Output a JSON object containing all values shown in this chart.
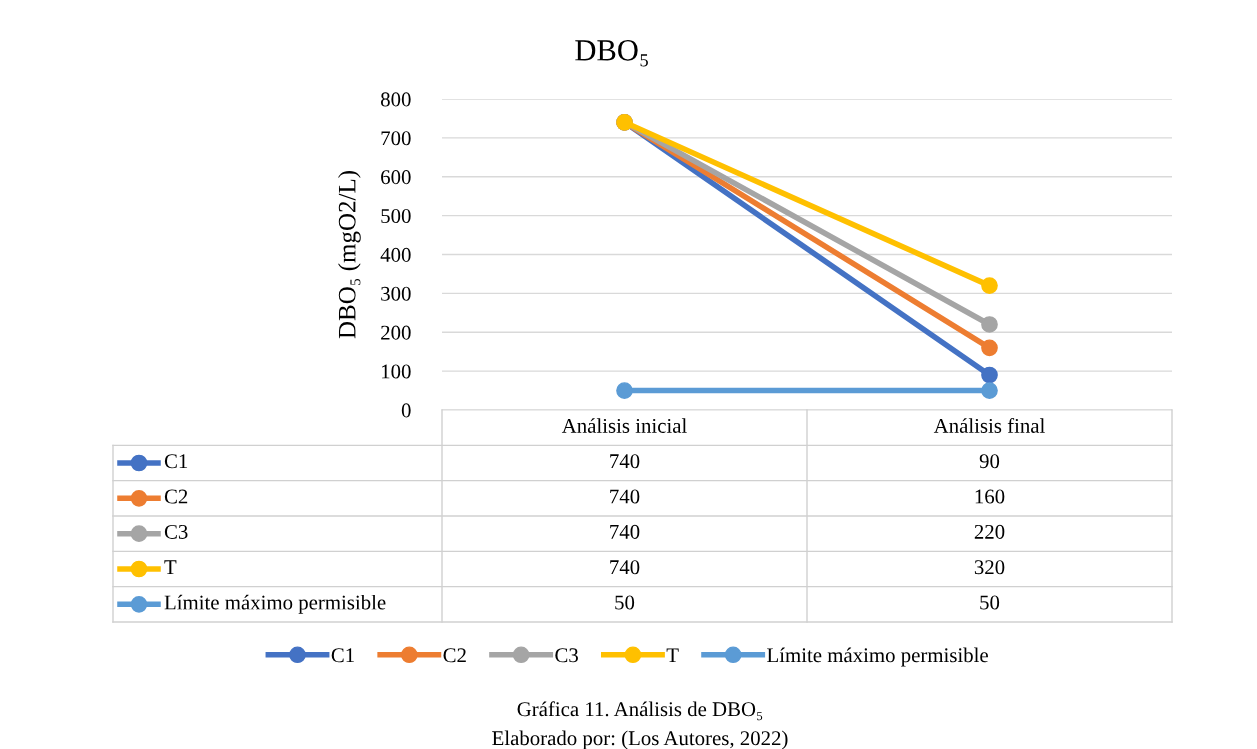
{
  "chart_data": {
    "type": "line",
    "title": "DBO₅",
    "ylabel": "DBO₅ (mgO2/L)",
    "categories": [
      "Análisis inicial",
      "Análisis final"
    ],
    "series": [
      {
        "name": "C1",
        "color": "#4472c4",
        "values": [
          740,
          90
        ]
      },
      {
        "name": "C2",
        "color": "#ed7d31",
        "values": [
          740,
          160
        ]
      },
      {
        "name": "C3",
        "color": "#a5a5a5",
        "values": [
          740,
          220
        ]
      },
      {
        "name": "T",
        "color": "#ffc000",
        "values": [
          740,
          320
        ]
      },
      {
        "name": "Límite máximo permisible",
        "color": "#5b9bd5",
        "values": [
          50,
          50
        ]
      }
    ],
    "ylim": [
      0,
      800
    ],
    "yticks": [
      0,
      100,
      200,
      300,
      400,
      500,
      600,
      700,
      800
    ],
    "grid": "y",
    "legend": "bottom",
    "marker": "circle",
    "line_style": "solid",
    "data_labels": true,
    "annotations": [
      "Gráfica 11. Análisis de DBO₅",
      "Elaborado por: (Los Autores, 2022)"
    ]
  }
}
